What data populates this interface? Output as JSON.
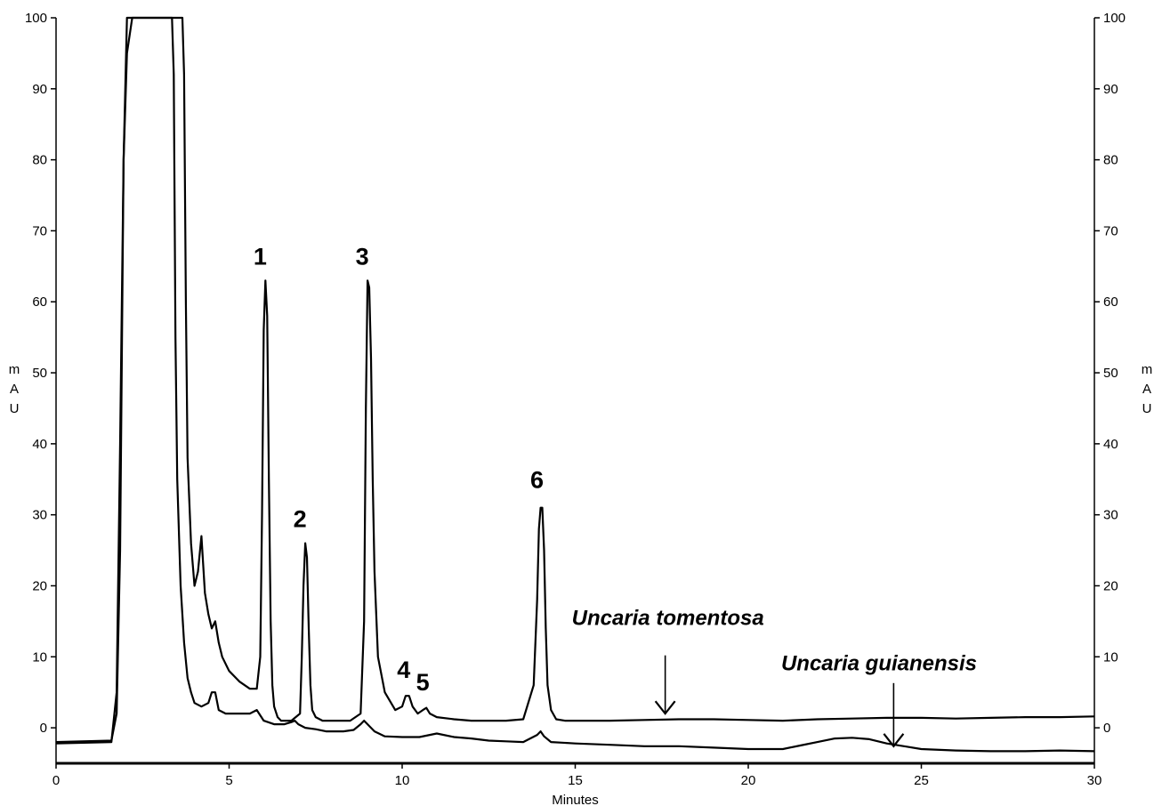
{
  "chart_data": {
    "type": "line",
    "xlabel": "Minutes",
    "ylabel_left": "mAU",
    "ylabel_right": "mAU",
    "xlim": [
      0,
      30
    ],
    "ylim": [
      -5,
      100
    ],
    "x_ticks": [
      0,
      5,
      10,
      15,
      20,
      25,
      30
    ],
    "y_ticks": [
      0,
      10,
      20,
      30,
      40,
      50,
      60,
      70,
      80,
      90,
      100
    ],
    "grid": false,
    "legend": "none",
    "series": [
      {
        "name": "Uncaria tomentosa",
        "x": [
          0,
          1.6,
          1.75,
          1.85,
          1.95,
          2.05,
          2.1,
          2.3,
          2.6,
          3.0,
          3.3,
          3.5,
          3.65,
          3.7,
          3.75,
          3.8,
          3.9,
          4.0,
          4.1,
          4.2,
          4.3,
          4.4,
          4.5,
          4.6,
          4.7,
          4.8,
          5.0,
          5.3,
          5.6,
          5.8,
          5.9,
          5.95,
          6.0,
          6.05,
          6.1,
          6.15,
          6.2,
          6.25,
          6.3,
          6.4,
          6.5,
          6.8,
          7.05,
          7.1,
          7.15,
          7.2,
          7.25,
          7.3,
          7.35,
          7.4,
          7.5,
          7.7,
          8.0,
          8.5,
          8.8,
          8.9,
          8.95,
          9.0,
          9.05,
          9.1,
          9.15,
          9.2,
          9.3,
          9.5,
          9.8,
          10.0,
          10.1,
          10.2,
          10.3,
          10.45,
          10.6,
          10.7,
          10.8,
          11.0,
          11.5,
          12.0,
          12.5,
          13.0,
          13.5,
          13.8,
          13.9,
          13.95,
          14.0,
          14.05,
          14.1,
          14.15,
          14.2,
          14.3,
          14.45,
          14.7,
          15.0,
          16.0,
          17.0,
          18.0,
          19.0,
          20.0,
          21.0,
          22.0,
          23.0,
          24.0,
          25.0,
          26.0,
          27.0,
          28.0,
          29.0,
          30.0
        ],
        "values": [
          -2,
          -1.8,
          2,
          25,
          80,
          100,
          100,
          100,
          100,
          100,
          100,
          100,
          100,
          92,
          60,
          38,
          26,
          20,
          22,
          27,
          19,
          16,
          14,
          15,
          12,
          10,
          8,
          6.5,
          5.5,
          5.5,
          10,
          30,
          56,
          63,
          58,
          35,
          15,
          6,
          3,
          1.5,
          1,
          1,
          2,
          10,
          20,
          26,
          24,
          14,
          6,
          2.5,
          1.5,
          1,
          1,
          1,
          2,
          15,
          45,
          63,
          62,
          52,
          35,
          22,
          10,
          5,
          2.5,
          3,
          4.5,
          4.5,
          3,
          2,
          2.5,
          2.8,
          2,
          1.5,
          1.2,
          1,
          1,
          1,
          1.2,
          6,
          18,
          28,
          31,
          31,
          25,
          14,
          6,
          2.5,
          1.2,
          1,
          1,
          1,
          1.1,
          1.2,
          1.2,
          1.1,
          1,
          1.2,
          1.3,
          1.4,
          1.4,
          1.3,
          1.4,
          1.5,
          1.5,
          1.6
        ]
      },
      {
        "name": "Uncaria guianensis",
        "x": [
          0,
          1.6,
          1.75,
          1.85,
          1.95,
          2.05,
          2.2,
          2.5,
          2.8,
          3.1,
          3.35,
          3.4,
          3.45,
          3.5,
          3.6,
          3.7,
          3.8,
          3.9,
          4.0,
          4.2,
          4.4,
          4.5,
          4.6,
          4.7,
          4.9,
          5.2,
          5.6,
          5.8,
          6.0,
          6.3,
          6.6,
          6.8,
          6.9,
          7.0,
          7.2,
          7.5,
          7.8,
          8.0,
          8.3,
          8.6,
          8.8,
          8.9,
          9.0,
          9.2,
          9.5,
          10.0,
          10.5,
          11.0,
          11.5,
          12.0,
          12.5,
          13.0,
          13.5,
          13.9,
          14.0,
          14.1,
          14.3,
          15.0,
          16.0,
          17.0,
          18.0,
          19.0,
          20.0,
          21.0,
          21.5,
          22.0,
          22.5,
          23.0,
          23.5,
          24.0,
          24.5,
          25.0,
          26.0,
          27.0,
          28.0,
          29.0,
          30.0
        ],
        "values": [
          -2.2,
          -2,
          5,
          40,
          80,
          95,
          100,
          100,
          100,
          100,
          100,
          92,
          55,
          35,
          20,
          12,
          7,
          5,
          3.5,
          3,
          3.5,
          5,
          5,
          2.5,
          2,
          2,
          2,
          2.5,
          1,
          0.5,
          0.5,
          0.8,
          1,
          0.5,
          0,
          -0.2,
          -0.5,
          -0.5,
          -0.5,
          -0.3,
          0.5,
          1,
          0.5,
          -0.5,
          -1.2,
          -1.3,
          -1.3,
          -0.8,
          -1.3,
          -1.5,
          -1.8,
          -1.9,
          -2,
          -1,
          -0.5,
          -1.2,
          -2,
          -2.2,
          -2.4,
          -2.6,
          -2.6,
          -2.8,
          -3,
          -3,
          -2.5,
          -2,
          -1.5,
          -1.4,
          -1.6,
          -2.2,
          -2.6,
          -3,
          -3.2,
          -3.3,
          -3.3,
          -3.2,
          -3.3
        ]
      }
    ],
    "annotations": {
      "peaks": [
        {
          "label": "1",
          "x": 6.05,
          "y": 63
        },
        {
          "label": "2",
          "x": 7.2,
          "y": 26
        },
        {
          "label": "3",
          "x": 9.0,
          "y": 63
        },
        {
          "label": "4",
          "x": 10.2,
          "y": 4.8
        },
        {
          "label": "5",
          "x": 10.75,
          "y": 3
        },
        {
          "label": "6",
          "x": 14.05,
          "y": 31.5
        }
      ],
      "samples": [
        {
          "label": "Uncaria tomentosa",
          "text_x": 14.9,
          "text_y": 14.5,
          "arrow_x": 17.6,
          "arrow_from_y": 10.2,
          "arrow_to_y": 2
        },
        {
          "label": "Uncaria guianensis",
          "text_x": 20.95,
          "text_y": 8.1,
          "arrow_x": 24.2,
          "arrow_from_y": 6.3,
          "arrow_to_y": -2.6
        }
      ]
    }
  }
}
